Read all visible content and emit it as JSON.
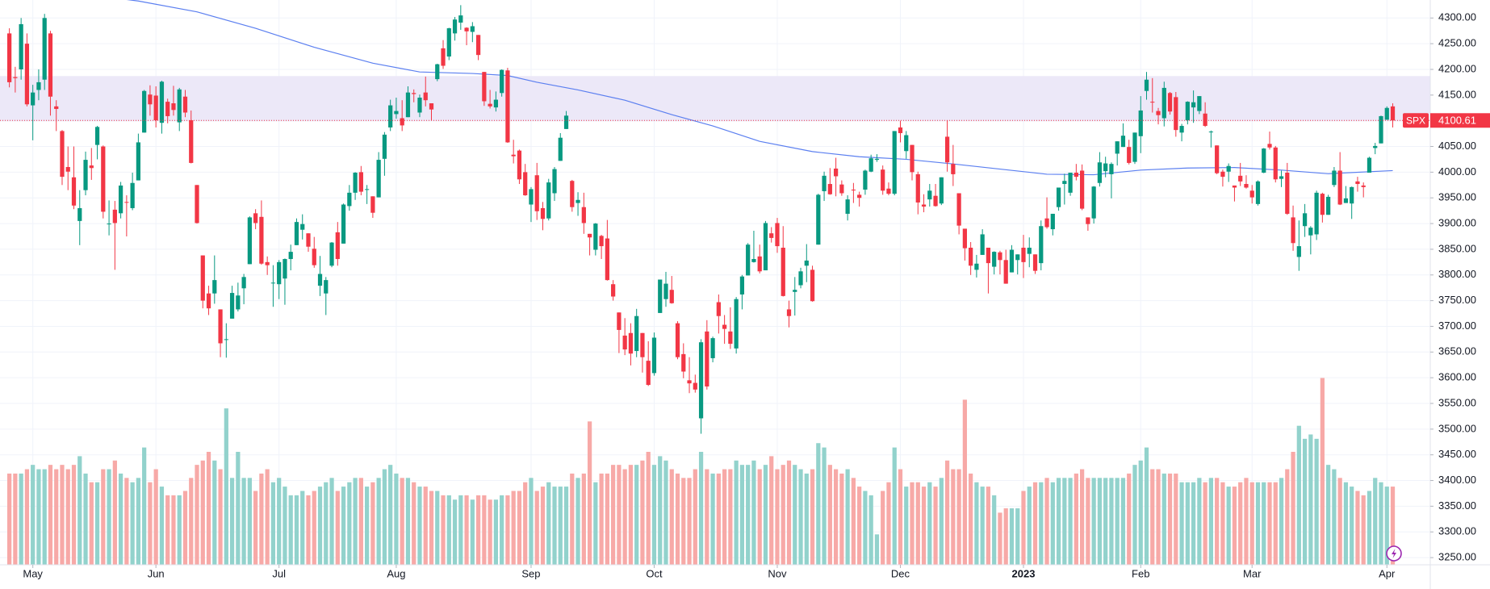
{
  "chart_data": {
    "type": "candlestick",
    "open": [
      4270,
      4185,
      4200,
      4250,
      4130,
      4160,
      4180,
      4270,
      4128,
      4080,
      4010,
      3990,
      3905,
      3965,
      4013,
      4053,
      4050,
      3900,
      3927,
      3920,
      3942,
      3930,
      3984,
      4077,
      4151,
      4149,
      4096,
      4137,
      4134,
      4097,
      4147,
      4101,
      3975,
      3838,
      3764,
      3764,
      3733,
      3674,
      3715,
      3733,
      3774,
      3821,
      3920,
      3913,
      3825,
      3785,
      3782,
      3793,
      3831,
      3858,
      3888,
      3881,
      3851,
      3779,
      3764,
      3818,
      3883,
      3861,
      3934,
      3960,
      4000,
      3966,
      3953,
      3951,
      4026,
      4087,
      4113,
      4105,
      4107,
      4154,
      4116,
      4155,
      4134,
      4181,
      4241,
      4225,
      4270,
      4291,
      4281,
      4273,
      4267,
      4195,
      4133,
      4126,
      4154,
      4198,
      4034,
      4042,
      4000,
      3937,
      3994,
      3930,
      3910,
      3959,
      4022,
      4084,
      3983,
      3940,
      3932,
      3880,
      3849,
      3876,
      3871,
      3782,
      3727,
      3682,
      3687,
      3652,
      3687,
      3633,
      3609,
      3726,
      3753,
      3771,
      3706,
      3646,
      3595,
      3590,
      3521,
      3690,
      3638,
      3747,
      3703,
      3690,
      3657,
      3762,
      3799,
      3825,
      3836,
      3809,
      3881,
      3901,
      3853,
      3733,
      3767,
      3780,
      3818,
      3810,
      3859,
      3963,
      3977,
      4007,
      3976,
      3919,
      3966,
      3956,
      3966,
      4001,
      4024,
      4005,
      3968,
      3958,
      4087,
      4041,
      4053,
      3996,
      3937,
      3947,
      3954,
      3939,
      4069,
      4016,
      3959,
      3890,
      3853,
      3810,
      3839,
      3853,
      3816,
      3844,
      3829,
      3805,
      3829,
      3853,
      3841,
      3840,
      3823,
      3910,
      3889,
      3932,
      3977,
      3960,
      3999,
      4003,
      3912,
      3910,
      3979,
      4002,
      3996,
      4036,
      4049,
      4049,
      4020,
      4070,
      4158,
      4137,
      4119,
      4105,
      4154,
      4146,
      4077,
      4101,
      4126,
      4119,
      4114,
      4078,
      4052,
      4001,
      4001,
      3974,
      3993,
      3977,
      3964,
      3938,
      3999,
      4055,
      4048,
      3987,
      3999,
      3912,
      3835,
      3895,
      3877,
      3879,
      3958,
      3917,
      3975,
      4003,
      3940,
      3939,
      3982,
      3974,
      3999,
      4047,
      4056,
      4102,
      4128
    ],
    "high": [
      4280,
      4205,
      4300,
      4270,
      4170,
      4200,
      4308,
      4275,
      4140,
      4082,
      4050,
      4050,
      3965,
      4040,
      4047,
      4090,
      4052,
      3945,
      3944,
      3981,
      3955,
      3999,
      4075,
      4160,
      4169,
      4167,
      4178,
      4143,
      4168,
      4164,
      4160,
      4120,
      3975,
      3838,
      3779,
      3838,
      3733,
      3706,
      3779,
      3785,
      3802,
      3914,
      3928,
      3945,
      3836,
      3819,
      3829,
      3832,
      3859,
      3910,
      3918,
      3881,
      3874,
      3837,
      3796,
      3864,
      3903,
      3939,
      3975,
      4000,
      4012,
      3975,
      3953,
      4039,
      4078,
      4141,
      4145,
      4140,
      4167,
      4161,
      4151,
      4186,
      4134,
      4211,
      4257,
      4281,
      4302,
      4325,
      4282,
      4292,
      4267,
      4195,
      4160,
      4157,
      4200,
      4203,
      4063,
      4044,
      4016,
      3971,
      4018,
      3942,
      3987,
      4010,
      4076,
      4119,
      3985,
      3961,
      3960,
      3880,
      3901,
      3878,
      3907,
      3790,
      3727,
      3716,
      3706,
      3734,
      3687,
      3671,
      3688,
      3791,
      3806,
      3798,
      3710,
      3667,
      3640,
      3606,
      3675,
      3712,
      3680,
      3762,
      3722,
      3737,
      3757,
      3800,
      3862,
      3886,
      3859,
      3905,
      3893,
      3911,
      3895,
      3750,
      3796,
      3814,
      3860,
      3818,
      3958,
      4001,
      4008,
      4028,
      3984,
      3955,
      3979,
      3962,
      4005,
      4034,
      4035,
      4013,
      3980,
      4080,
      4100,
      4080,
      4053,
      4001,
      3957,
      3977,
      3977,
      3990,
      4101,
      4053,
      3959,
      3890,
      3864,
      3839,
      3889,
      3853,
      3846,
      3847,
      3849,
      3858,
      3840,
      3878,
      3873,
      3840,
      3906,
      3951,
      3919,
      3970,
      3997,
      3999,
      4016,
      4015,
      3912,
      3973,
      4039,
      4030,
      4019,
      4060,
      4095,
      4063,
      4077,
      4148,
      4195,
      4183,
      4125,
      4176,
      4156,
      4156,
      4094,
      4138,
      4159,
      4148,
      4136,
      4081,
      4052,
      4005,
      4017,
      3974,
      4018,
      3994,
      3975,
      3984,
      4047,
      4079,
      4051,
      4003,
      4018,
      3935,
      3906,
      3938,
      3895,
      3964,
      3960,
      3956,
      4010,
      4039,
      3973,
      3972,
      3991,
      3980,
      4030,
      4057,
      4110,
      4128,
      4134
    ],
    "low": [
      4165,
      4155,
      4180,
      4128,
      4062,
      4140,
      4160,
      4110,
      4080,
      3975,
      3965,
      3928,
      3858,
      3955,
      3985,
      4025,
      3910,
      3877,
      3810,
      3910,
      3875,
      3926,
      3984,
      4077,
      4110,
      4087,
      4075,
      4095,
      4110,
      4080,
      4107,
      4017,
      3900,
      3735,
      3722,
      3744,
      3640,
      3639,
      3715,
      3729,
      3743,
      3821,
      3889,
      3820,
      3800,
      3738,
      3753,
      3742,
      3809,
      3858,
      3869,
      3845,
      3814,
      3759,
      3722,
      3815,
      3818,
      3861,
      3925,
      3946,
      3955,
      3938,
      3911,
      3951,
      3993,
      4080,
      4104,
      4080,
      4107,
      4136,
      4107,
      4128,
      4101,
      4177,
      4201,
      4218,
      4256,
      4277,
      4247,
      4253,
      4218,
      4129,
      4124,
      4118,
      4147,
      4057,
      4017,
      3977,
      3954,
      3903,
      3907,
      3887,
      3906,
      3944,
      4022,
      4084,
      3923,
      3915,
      3880,
      3838,
      3838,
      3831,
      3789,
      3750,
      3648,
      3644,
      3624,
      3640,
      3610,
      3584,
      3604,
      3726,
      3738,
      3744,
      3636,
      3599,
      3570,
      3571,
      3491,
      3577,
      3630,
      3686,
      3666,
      3656,
      3647,
      3733,
      3799,
      3824,
      3803,
      3809,
      3863,
      3843,
      3758,
      3698,
      3721,
      3774,
      3786,
      3748,
      3859,
      3944,
      3956,
      3953,
      3954,
      3906,
      3940,
      3933,
      3956,
      4000,
      4020,
      3956,
      3955,
      3955,
      4058,
      4026,
      3984,
      3918,
      3922,
      3933,
      3933,
      3936,
      4001,
      3973,
      3879,
      3828,
      3800,
      3795,
      3839,
      3764,
      3801,
      3801,
      3783,
      3805,
      3801,
      3794,
      3815,
      3802,
      3809,
      3890,
      3877,
      3925,
      3937,
      3954,
      3984,
      3926,
      3886,
      3900,
      3972,
      3990,
      3949,
      4013,
      4049,
      4015,
      4016,
      4037,
      4141,
      4116,
      4093,
      4089,
      4112,
      4069,
      4060,
      4093,
      4096,
      4113,
      4088,
      4048,
      3996,
      3972,
      3981,
      3943,
      3973,
      3968,
      3939,
      3935,
      3998,
      4044,
      3980,
      3971,
      3917,
      3847,
      3808,
      3874,
      3840,
      3868,
      3902,
      3917,
      3971,
      3936,
      3940,
      3909,
      3962,
      3951,
      3999,
      4035,
      4056,
      4102,
      4087
    ],
    "close": [
      4175,
      4183,
      4288,
      4132,
      4155,
      4175,
      4300,
      4147,
      4123,
      3991,
      4001,
      3935,
      3930,
      4024,
      4008,
      4088,
      3923,
      3900,
      3901,
      3974,
      3941,
      3979,
      4058,
      4158,
      4132,
      4101,
      4176,
      4109,
      4121,
      4161,
      4116,
      4018,
      3901,
      3750,
      3735,
      3790,
      3667,
      3675,
      3765,
      3760,
      3796,
      3912,
      3901,
      3822,
      3819,
      3785,
      3825,
      3831,
      3845,
      3903,
      3899,
      3855,
      3819,
      3802,
      3790,
      3863,
      3831,
      3937,
      3960,
      3999,
      3962,
      3967,
      3921,
      4024,
      4073,
      4130,
      4119,
      4091,
      4155,
      4152,
      4145,
      4140,
      4122,
      4210,
      4207,
      4280,
      4297,
      4305,
      4274,
      4284,
      4228,
      4138,
      4128,
      4141,
      4199,
      4058,
      4031,
      3986,
      3955,
      3967,
      3924,
      3909,
      3980,
      4006,
      4067,
      4110,
      3932,
      3946,
      3901,
      3873,
      3900,
      3856,
      3790,
      3758,
      3693,
      3655,
      3647,
      3720,
      3640,
      3586,
      3678,
      3791,
      3783,
      3745,
      3640,
      3612,
      3589,
      3577,
      3669,
      3583,
      3677,
      3720,
      3695,
      3666,
      3753,
      3797,
      3859,
      3831,
      3807,
      3901,
      3872,
      3856,
      3759,
      3720,
      3771,
      3807,
      3828,
      3749,
      3956,
      3993,
      3957,
      3992,
      3959,
      3947,
      3965,
      3950,
      4003,
      4027,
      4026,
      3964,
      3958,
      4080,
      4076,
      4072,
      4000,
      3941,
      3933,
      3964,
      3934,
      3990,
      4019,
      3996,
      3896,
      3852,
      3818,
      3822,
      3879,
      3823,
      3845,
      3829,
      3783,
      3849,
      3840,
      3825,
      3853,
      3808,
      3895,
      3893,
      3919,
      3970,
      3983,
      3999,
      3991,
      3929,
      3899,
      3972,
      4019,
      4017,
      4016,
      4060,
      4071,
      4018,
      4077,
      4120,
      4180,
      4136,
      4111,
      4164,
      4118,
      4082,
      4090,
      4137,
      4136,
      4148,
      4090,
      4079,
      3998,
      3991,
      4012,
      3970,
      3982,
      3970,
      3951,
      3982,
      4046,
      4048,
      3986,
      3992,
      3919,
      3862,
      3856,
      3920,
      3892,
      3960,
      3917,
      3952,
      4003,
      3937,
      3949,
      3971,
      3977,
      3971,
      4028,
      4051,
      4109,
      4125,
      4100.61
    ],
    "volume": [
      2.1,
      2.1,
      2.1,
      2.2,
      2.3,
      2.2,
      2.2,
      2.3,
      2.2,
      2.3,
      2.2,
      2.3,
      2.5,
      2.1,
      1.9,
      1.9,
      2.2,
      2.2,
      2.4,
      2.1,
      2.0,
      1.9,
      2.0,
      2.7,
      1.9,
      2.2,
      1.8,
      1.6,
      1.6,
      1.6,
      1.7,
      2.0,
      2.3,
      2.4,
      2.6,
      2.4,
      2.2,
      3.6,
      2.0,
      2.6,
      2.0,
      2.0,
      1.7,
      2.1,
      2.2,
      1.9,
      2.0,
      1.8,
      1.6,
      1.6,
      1.7,
      1.6,
      1.7,
      1.8,
      1.9,
      2.0,
      1.7,
      1.8,
      1.9,
      2.0,
      2.0,
      1.8,
      1.9,
      2.0,
      2.2,
      2.3,
      2.1,
      2.0,
      2.0,
      1.9,
      1.8,
      1.8,
      1.7,
      1.7,
      1.6,
      1.6,
      1.5,
      1.6,
      1.6,
      1.5,
      1.6,
      1.6,
      1.5,
      1.5,
      1.6,
      1.6,
      1.7,
      1.7,
      1.9,
      2.0,
      1.7,
      1.8,
      1.9,
      1.8,
      1.8,
      1.8,
      2.1,
      2.0,
      2.1,
      3.3,
      1.9,
      2.1,
      2.1,
      2.3,
      2.3,
      2.2,
      2.3,
      2.3,
      2.4,
      2.6,
      2.3,
      2.5,
      2.4,
      2.2,
      2.1,
      2.0,
      2.0,
      2.2,
      2.6,
      2.2,
      2.1,
      2.1,
      2.2,
      2.2,
      2.4,
      2.3,
      2.3,
      2.4,
      2.2,
      2.3,
      2.5,
      2.2,
      2.3,
      2.4,
      2.3,
      2.2,
      2.1,
      2.2,
      2.8,
      2.7,
      2.3,
      2.2,
      2.1,
      2.2,
      2.0,
      1.8,
      1.7,
      1.6,
      0.7,
      1.7,
      1.9,
      2.7,
      2.2,
      1.8,
      1.9,
      1.9,
      1.8,
      1.9,
      1.8,
      2.0,
      2.4,
      2.2,
      2.2,
      3.8,
      2.1,
      1.9,
      1.8,
      1.8,
      1.6,
      1.2,
      1.3,
      1.3,
      1.3,
      1.7,
      1.8,
      1.9,
      1.9,
      2.0,
      1.9,
      2.0,
      2.0,
      2.0,
      2.1,
      2.2,
      2.0,
      2.0,
      2.0,
      2.0,
      2.0,
      2.0,
      2.0,
      2.1,
      2.3,
      2.4,
      2.7,
      2.2,
      2.2,
      2.1,
      2.1,
      2.1,
      1.9,
      1.9,
      1.9,
      2.0,
      1.9,
      2.0,
      2.0,
      1.9,
      1.8,
      1.8,
      1.9,
      2.0,
      1.9,
      1.9,
      1.9,
      1.9,
      1.9,
      2.0,
      2.2,
      2.6,
      3.2,
      2.9,
      3.0,
      2.9,
      4.3,
      2.3,
      2.2,
      2.0,
      1.9,
      1.8,
      1.7,
      1.6,
      1.7,
      2.0,
      1.9,
      1.8,
      1.8
    ],
    "up_color": "#089981",
    "down_color": "#f23645",
    "volume_up_color": "#92d2cc",
    "volume_down_color": "#f7a9a7",
    "volume_lim": [
      0,
      13
    ],
    "xlim": [
      -1.6,
      242.4
    ],
    "xticks": [
      {
        "value": 4,
        "label": "May"
      },
      {
        "value": 25,
        "label": "Jun"
      },
      {
        "value": 46,
        "label": "Jul"
      },
      {
        "value": 66,
        "label": "Aug"
      },
      {
        "value": 89,
        "label": "Sep"
      },
      {
        "value": 110,
        "label": "Oct"
      },
      {
        "value": 131,
        "label": "Nov"
      },
      {
        "value": 152,
        "label": "Dec"
      },
      {
        "value": 173,
        "label": "2023"
      },
      {
        "value": 193,
        "label": "Feb"
      },
      {
        "value": 212,
        "label": "Mar"
      },
      {
        "value": 235,
        "label": "Apr"
      }
    ],
    "ylim": [
      3236,
      4335
    ],
    "yticks": [
      {
        "value": 3250,
        "label": "3250.00"
      },
      {
        "value": 3300,
        "label": "3300.00"
      },
      {
        "value": 3350,
        "label": "3350.00"
      },
      {
        "value": 3400,
        "label": "3400.00"
      },
      {
        "value": 3450,
        "label": "3450.00"
      },
      {
        "value": 3500,
        "label": "3500.00"
      },
      {
        "value": 3550,
        "label": "3550.00"
      },
      {
        "value": 3600,
        "label": "3600.00"
      },
      {
        "value": 3650,
        "label": "3650.00"
      },
      {
        "value": 3700,
        "label": "3700.00"
      },
      {
        "value": 3750,
        "label": "3750.00"
      },
      {
        "value": 3800,
        "label": "3800.00"
      },
      {
        "value": 3850,
        "label": "3850.00"
      },
      {
        "value": 3900,
        "label": "3900.00"
      },
      {
        "value": 3950,
        "label": "3950.00"
      },
      {
        "value": 4000,
        "label": "4000.00"
      },
      {
        "value": 4050,
        "label": "4050.00"
      },
      {
        "value": 4100,
        "label": "4100.00"
      },
      {
        "value": 4150,
        "label": "4150.00"
      },
      {
        "value": 4200,
        "label": "4200.00"
      },
      {
        "value": 4250,
        "label": "4250.00"
      },
      {
        "value": 4300,
        "label": "4300.00"
      }
    ],
    "grid": true,
    "moving_average": {
      "color": "#5b7ff0",
      "x": [
        0,
        9,
        22,
        32,
        42,
        52,
        62,
        70,
        79,
        85,
        90,
        97,
        105,
        113,
        120,
        128,
        137,
        145,
        153,
        161,
        169,
        177,
        185,
        193,
        201,
        209,
        217,
        225,
        236
      ],
      "values": [
        4372,
        4352,
        4333,
        4312,
        4280,
        4243,
        4212,
        4195,
        4192,
        4188,
        4175,
        4160,
        4140,
        4112,
        4090,
        4060,
        4040,
        4030,
        4025,
        4016,
        4006,
        3996,
        3995,
        4004,
        4008,
        4009,
        4004,
        3997,
        4003
      ]
    },
    "zone": {
      "range": [
        4099,
        4187
      ],
      "color": "#ece8f8"
    },
    "last_price": {
      "symbol": "SPX",
      "value": 4100.61,
      "color": "#f23645"
    }
  }
}
